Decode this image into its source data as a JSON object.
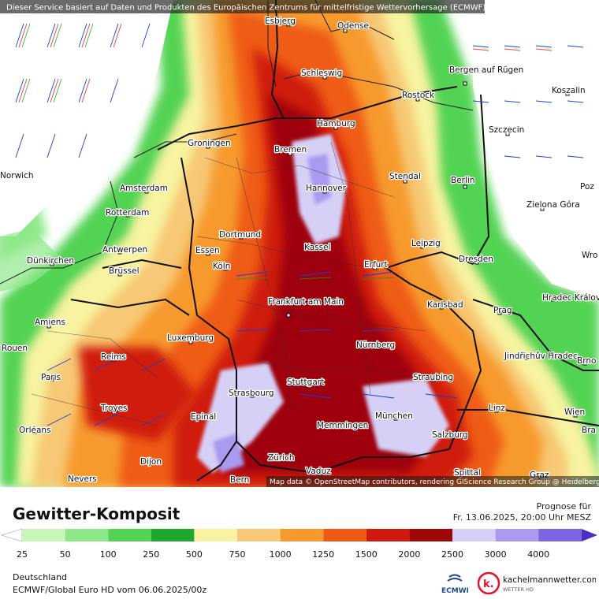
{
  "header": {
    "disclaimer": "Dieser Service basiert auf Daten und Produkten des Europäischen Zentrums für mittelfristige Wettervorhersage (ECMWF)",
    "attribution": "Map data © OpenStreetMap contributors, rendering GIScience Research Group @ Heidelberg University"
  },
  "map": {
    "cities": [
      "Esbjerg",
      "Odense",
      "Schleswig",
      "Bergen auf Rügen",
      "Rostock",
      "Koszalin",
      "Hamburg",
      "Szczecin",
      "Groningen",
      "Bremen",
      "Stendal",
      "Amsterdam",
      "Hannover",
      "Berlin",
      "Rotterdam",
      "Dortmund",
      "Zielona Góra",
      "Essen",
      "Kassel",
      "Antwerpen",
      "Dünkirchen",
      "Leipzig",
      "Brüssel",
      "Köln",
      "Erfurt",
      "Dresden",
      "Frankfurt am Main",
      "Karlsbad",
      "Hradec Králové",
      "Prag",
      "Amiens",
      "Luxemburg",
      "Rouen",
      "Nürnberg",
      "Reims",
      "Jindřichův Hradec",
      "Brno",
      "Paris",
      "Stuttgart",
      "Straubing",
      "Strasbourg",
      "Troyes",
      "Epinal",
      "München",
      "Linz",
      "Wien",
      "Orléans",
      "Memmingen",
      "Salzburg",
      "Zürich",
      "Dijon",
      "Vaduz",
      "Bern",
      "Nevers",
      "Spittal",
      "Graz",
      "Norwich",
      "Poz",
      "Wro",
      "Bra"
    ]
  },
  "legend": {
    "title": "Gewitter-Komposit",
    "forecast_label": "Prognose für",
    "forecast_time": "Fr. 13.06.2025, 20:00 Uhr MESZ",
    "region": "Deutschland",
    "model": "ECMWF/Global Euro HD vom  06.06.2025/00z",
    "scale_ticks": [
      "25",
      "50",
      "100",
      "250",
      "500",
      "750",
      "1000",
      "1250",
      "1500",
      "2000",
      "2500",
      "3000",
      "4000"
    ],
    "scale_colors": [
      "#ffffff",
      "#c8f5b8",
      "#8ee88a",
      "#52d352",
      "#1fa82e",
      "#f7f3a0",
      "#f7c875",
      "#f79a2e",
      "#ef5b14",
      "#cf1a10",
      "#9e0608",
      "#d6d0f7",
      "#a99af0",
      "#7c66e0",
      "#4a2fc2"
    ],
    "ecmwf_label": "ECMWF",
    "brand_name": "kachelmannwetter.com",
    "brand_sub": "WETTER HD",
    "brand_letter": "k."
  }
}
